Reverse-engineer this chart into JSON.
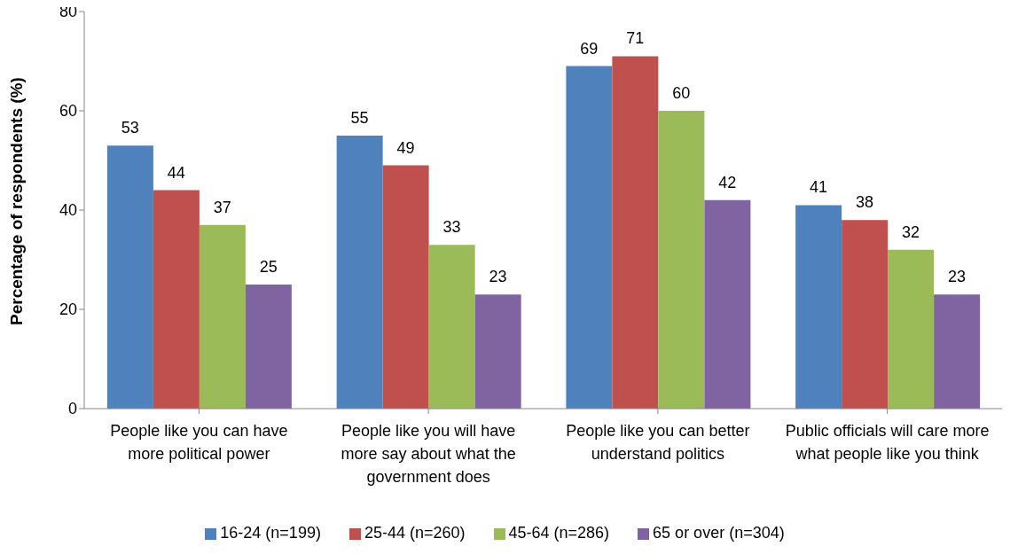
{
  "chart_data": {
    "type": "bar",
    "ylabel": "Percentage of respondents (%)",
    "categories": [
      "People like you can have more political power",
      "People like you will have more say about what the government does",
      "People like you can better understand politics",
      "Public officials will care more what people like you think"
    ],
    "series": [
      {
        "name": "16-24 (n=199)",
        "color": "#4f81bd",
        "values": [
          53,
          55,
          69,
          41
        ]
      },
      {
        "name": "25-44 (n=260)",
        "color": "#c0504d",
        "values": [
          44,
          49,
          71,
          38
        ]
      },
      {
        "name": "45-64 (n=286)",
        "color": "#9bbb59",
        "values": [
          37,
          33,
          60,
          32
        ]
      },
      {
        "name": "65 or over (n=304)",
        "color": "#8064a2",
        "values": [
          25,
          23,
          42,
          23
        ]
      }
    ],
    "ylim": [
      0,
      80
    ],
    "yticks": [
      0,
      20,
      40,
      60,
      80
    ],
    "grid": false,
    "legend": "bottom",
    "data_labels": true
  }
}
